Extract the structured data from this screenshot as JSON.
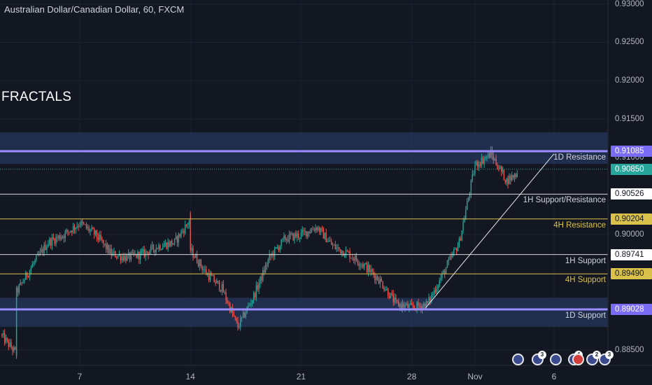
{
  "header": {
    "title": "Australian Dollar/Canadian Dollar, 60, FXCM",
    "overlay_text": "FRACTALS"
  },
  "colors": {
    "background": "#131722",
    "up_candle": "#26a69a",
    "down_candle": "#ef5350",
    "resistance_zone": "#7b6cf6",
    "h4_line": "#d9c14a",
    "h1_line": "#d6d6d6",
    "current_price": "#26a69a"
  },
  "price_axis": {
    "ticks": [
      "0.93000",
      "0.92500",
      "0.92000",
      "0.91500",
      "0.91000",
      "0.90500",
      "0.90000",
      "0.88500"
    ],
    "tags": [
      {
        "name": "d1-resistance-price",
        "value": "0.91085",
        "level": 0.91085,
        "bg": "#7b6cf6",
        "fg": "#ffffff"
      },
      {
        "name": "current-price",
        "value": "0.90850",
        "level": 0.9085,
        "bg": "#26a69a",
        "fg": "#ffffff"
      },
      {
        "name": "h1-sr-price",
        "value": "0.90526",
        "level": 0.90526,
        "bg": "#ffffff",
        "fg": "#131722"
      },
      {
        "name": "h4-resistance-price",
        "value": "0.90204",
        "level": 0.90204,
        "bg": "#d9c14a",
        "fg": "#131722"
      },
      {
        "name": "h1-support-price",
        "value": "0.89741",
        "level": 0.89741,
        "bg": "#ffffff",
        "fg": "#131722"
      },
      {
        "name": "h4-support-price",
        "value": "0.89490",
        "level": 0.8949,
        "bg": "#d9c14a",
        "fg": "#131722"
      },
      {
        "name": "d1-support-price",
        "value": "0.89028",
        "level": 0.89028,
        "bg": "#7b6cf6",
        "fg": "#ffffff"
      }
    ]
  },
  "levels": [
    {
      "name": "1d-resistance",
      "label": "1D Resistance",
      "value": 0.91085,
      "color": "#9b8cff",
      "width": 3,
      "label_color": "#d1d4dc"
    },
    {
      "name": "1h-support-resistance",
      "label": "1H Support/Resistance",
      "value": 0.90526,
      "color": "#d6d6d6",
      "width": 1,
      "label_color": "#d1d4dc"
    },
    {
      "name": "4h-resistance",
      "label": "4H Resistance",
      "value": 0.90204,
      "color": "#d9c14a",
      "width": 1,
      "label_color": "#d9c14a"
    },
    {
      "name": "1h-support",
      "label": "1H Support",
      "value": 0.89741,
      "color": "#d6d6d6",
      "width": 1,
      "label_color": "#d1d4dc"
    },
    {
      "name": "4h-support",
      "label": "4H Support",
      "value": 0.8949,
      "color": "#d9c14a",
      "width": 1,
      "label_color": "#d9c14a"
    },
    {
      "name": "1d-support",
      "label": "1D Support",
      "value": 0.89028,
      "color": "#9b8cff",
      "width": 3,
      "label_color": "#d1d4dc"
    }
  ],
  "time_axis": {
    "labels": [
      "7",
      "14",
      "21",
      "28",
      "Nov",
      "6"
    ]
  },
  "events": [
    {
      "name": "event-au-1",
      "count": ""
    },
    {
      "name": "event-group-1",
      "count": "3"
    },
    {
      "name": "event-au-2",
      "count": ""
    },
    {
      "name": "event-group-2",
      "count": "4"
    },
    {
      "name": "event-ca-1",
      "count": ""
    },
    {
      "name": "event-group-3",
      "count": "2"
    },
    {
      "name": "event-group-4",
      "count": "3"
    }
  ],
  "chart_data": {
    "type": "candlestick",
    "symbol": "AUDCAD",
    "interval": "60",
    "ylim": [
      0.883,
      0.9305
    ],
    "zones": [
      {
        "name": "resistance-zone",
        "from": 0.9092,
        "to": 0.9133
      },
      {
        "name": "support-zone",
        "from": 0.888,
        "to": 0.8918
      }
    ],
    "trendline": [
      {
        "date": "Oct 28",
        "price": 0.8905
      },
      {
        "date": "Nov 4",
        "price": 0.9105
      }
    ],
    "path": [
      [
        "Oct 2",
        0.887
      ],
      [
        "Oct 3",
        0.8845
      ],
      [
        "Oct 3",
        0.8925
      ],
      [
        "Oct 4",
        0.896
      ],
      [
        "Oct 5",
        0.899
      ],
      [
        "Oct 6",
        0.9
      ],
      [
        "Oct 7",
        0.9015
      ],
      [
        "Oct 8",
        0.9
      ],
      [
        "Oct 9",
        0.8975
      ],
      [
        "Oct 10",
        0.897
      ],
      [
        "Oct 11",
        0.8975
      ],
      [
        "Oct 12",
        0.8985
      ],
      [
        "Oct 13",
        0.899
      ],
      [
        "Oct 14",
        0.902
      ],
      [
        "Oct 14",
        0.898
      ],
      [
        "Oct 15",
        0.895
      ],
      [
        "Oct 16",
        0.893
      ],
      [
        "Oct 17",
        0.888
      ],
      [
        "Oct 18",
        0.892
      ],
      [
        "Oct 19",
        0.897
      ],
      [
        "Oct 20",
        0.8995
      ],
      [
        "Oct 21",
        0.9
      ],
      [
        "Oct 22",
        0.901
      ],
      [
        "Oct 23",
        0.8985
      ],
      [
        "Oct 24",
        0.8975
      ],
      [
        "Oct 25",
        0.896
      ],
      [
        "Oct 26",
        0.894
      ],
      [
        "Oct 27",
        0.891
      ],
      [
        "Oct 28",
        0.8905
      ],
      [
        "Oct 29",
        0.891
      ],
      [
        "Oct 30",
        0.895
      ],
      [
        "Oct 31",
        0.899
      ],
      [
        "Nov 1",
        0.909
      ],
      [
        "Nov 2",
        0.9105
      ],
      [
        "Nov 3",
        0.907
      ],
      [
        "Nov 4",
        0.9085
      ],
      [
        "Nov 5",
        0.9085
      ]
    ]
  }
}
